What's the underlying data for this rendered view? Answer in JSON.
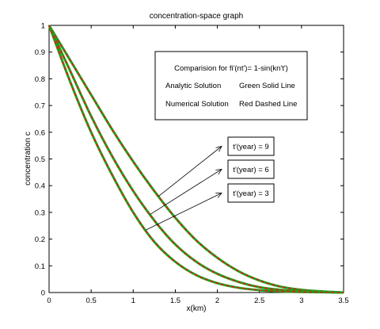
{
  "chart_data": {
    "type": "line",
    "title": "concentration-space graph",
    "xlabel": "x(km)",
    "ylabel": "concentration c",
    "xlim": [
      0,
      3.5
    ],
    "ylim": [
      0,
      1
    ],
    "xticks": [
      0,
      0.5,
      1,
      1.5,
      2,
      2.5,
      3,
      3.5
    ],
    "yticks": [
      0,
      0.1,
      0.2,
      0.3,
      0.4,
      0.5,
      0.6,
      0.7,
      0.8,
      0.9,
      1
    ],
    "grid": false,
    "x": [
      0,
      0.25,
      0.5,
      0.75,
      1.0,
      1.25,
      1.5,
      1.75,
      2.0,
      2.25,
      2.5,
      2.75,
      3.0,
      3.25,
      3.5
    ],
    "series": [
      {
        "values": [
          1.0,
          0.87,
          0.74,
          0.61,
          0.49,
          0.38,
          0.28,
          0.195,
          0.13,
          0.08,
          0.045,
          0.022,
          0.01,
          0.004,
          0.0
        ]
      },
      {
        "values": [
          1.0,
          0.83,
          0.66,
          0.51,
          0.38,
          0.27,
          0.18,
          0.115,
          0.07,
          0.04,
          0.02,
          0.01,
          0.005,
          0.002,
          0.0
        ]
      },
      {
        "values": [
          1.0,
          0.79,
          0.6,
          0.44,
          0.3,
          0.19,
          0.115,
          0.065,
          0.035,
          0.018,
          0.009,
          0.004,
          0.002,
          0.001,
          0.0
        ]
      }
    ],
    "styles": {
      "analytic_color": "#1aa51a",
      "numerical_color": "#e41a1a"
    },
    "legend": {
      "title": "Comparision for fi'(nt')= 1-sin(kn't')",
      "rows": [
        {
          "left": "Analytic Solution",
          "right": "Green Solid Line"
        },
        {
          "left": "Numerical Solution",
          "right": "Red Dashed Line"
        }
      ]
    },
    "annotations": [
      {
        "text": "t'(year) = 9",
        "series": 0,
        "x": 1.3
      },
      {
        "text": "t'(year) = 6",
        "series": 1,
        "x": 1.2
      },
      {
        "text": "t'(year) = 3",
        "series": 2,
        "x": 1.15
      }
    ]
  }
}
